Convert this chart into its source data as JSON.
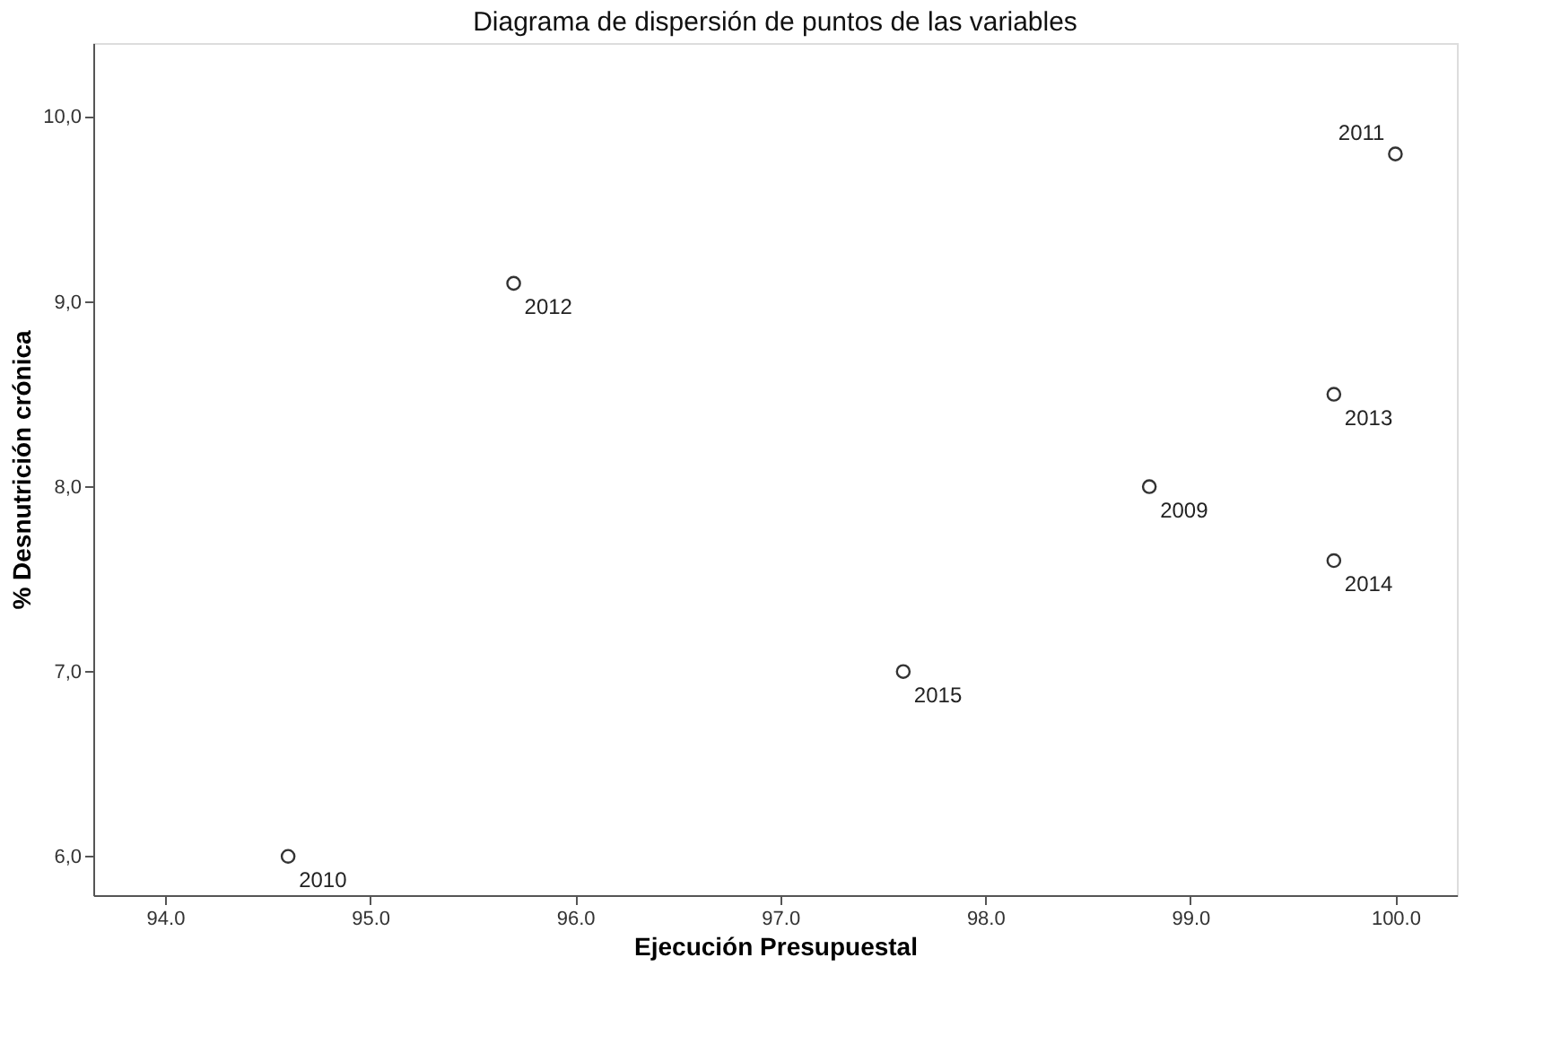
{
  "chart_data": {
    "type": "scatter",
    "title": "Diagrama de dispersión de puntos de las variables",
    "xlabel": "Ejecución Presupuestal",
    "ylabel": "% Desnutrición crónica",
    "series": [
      {
        "color": "#333333",
        "x": [
          98.8,
          94.6,
          100.0,
          95.7,
          99.7,
          99.7,
          97.6
        ],
        "values": [
          8.0,
          6.0,
          9.8,
          9.1,
          8.5,
          7.6,
          7.0
        ]
      }
    ],
    "annotations": [
      {
        "text": "2009",
        "x": 98.8,
        "y": 8.0
      },
      {
        "text": "2010",
        "x": 94.6,
        "y": 6.0
      },
      {
        "text": "2011",
        "x": 100.0,
        "y": 9.8
      },
      {
        "text": "2012",
        "x": 95.7,
        "y": 9.1
      },
      {
        "text": "2013",
        "x": 99.7,
        "y": 8.5
      },
      {
        "text": "2014",
        "x": 99.7,
        "y": 7.6
      },
      {
        "text": "2015",
        "x": 97.6,
        "y": 7.0
      }
    ],
    "xlim": [
      93.65,
      100.3
    ],
    "ylim": [
      5.79,
      10.4
    ],
    "xticks": [
      {
        "value": 94,
        "label": "94.0"
      },
      {
        "value": 95,
        "label": "95.0"
      },
      {
        "value": 96,
        "label": "96.0"
      },
      {
        "value": 97,
        "label": "97.0"
      },
      {
        "value": 98,
        "label": "98.0"
      },
      {
        "value": 99,
        "label": "99.0"
      },
      {
        "value": 100,
        "label": "100.0"
      }
    ],
    "yticks": [
      {
        "value": 6,
        "label": "6,0"
      },
      {
        "value": 7,
        "label": "7,0"
      },
      {
        "value": 8,
        "label": "8,0"
      },
      {
        "value": 9,
        "label": "9,0"
      },
      {
        "value": 10,
        "label": "10,0"
      }
    ],
    "marker": "circle",
    "grid": false
  }
}
